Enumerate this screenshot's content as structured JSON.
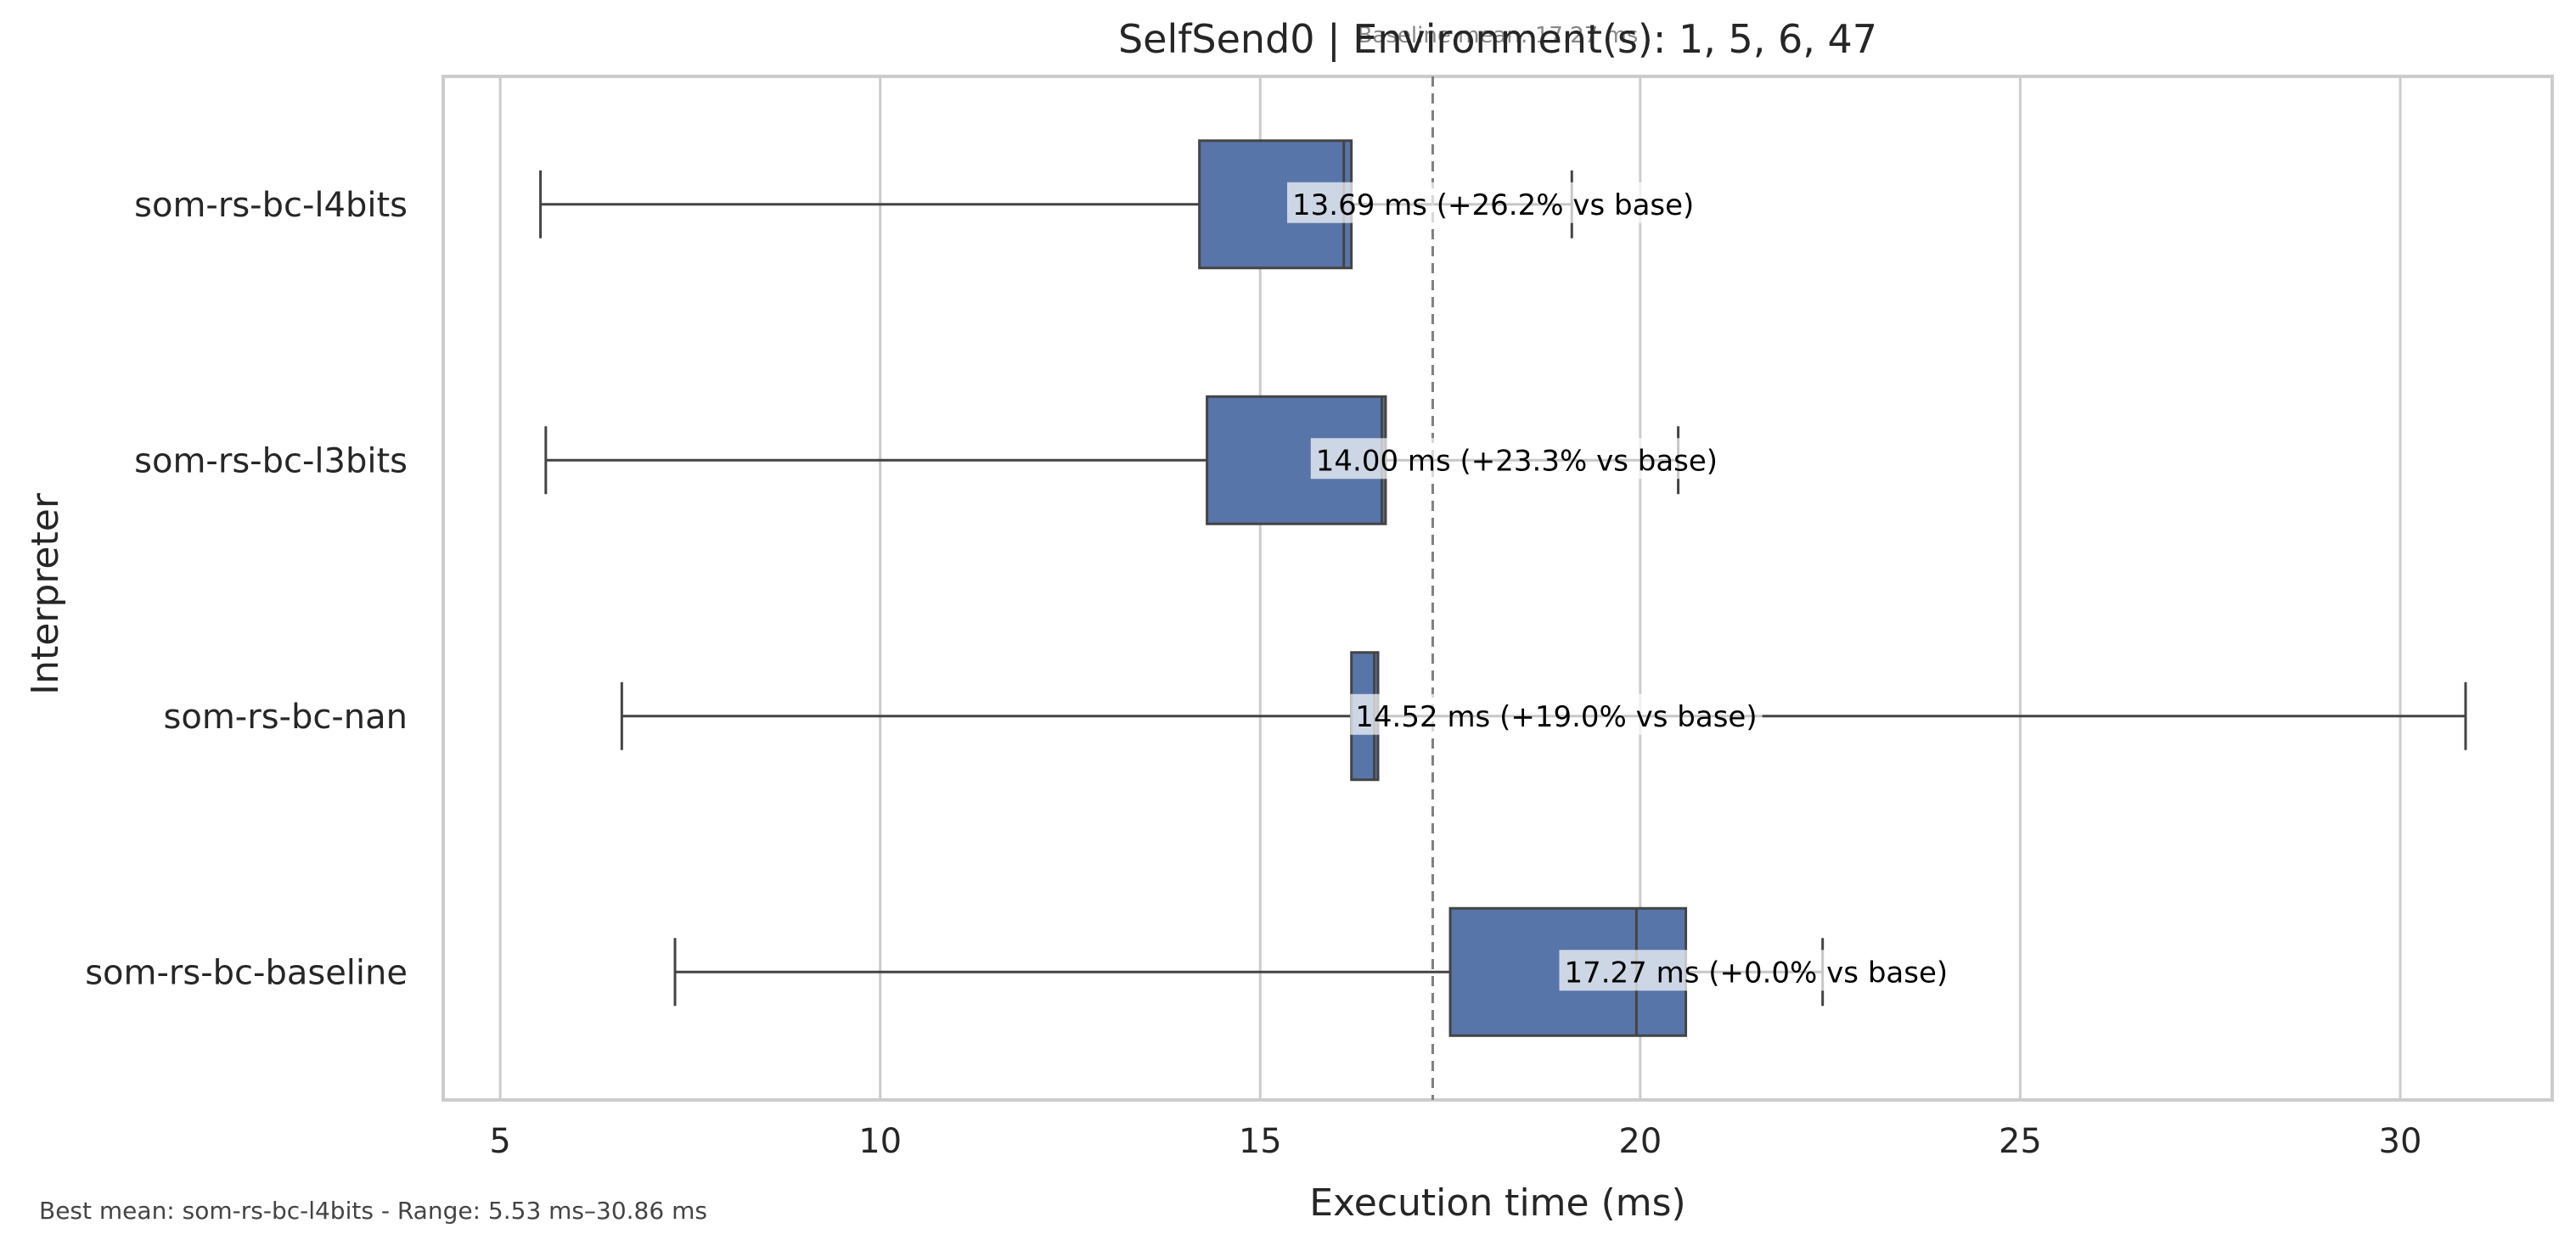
{
  "chart_data": {
    "type": "boxplot",
    "title": "SelfSend0 | Environment(s): 1, 5, 6, 47",
    "subtitle": "Baseline mean: 17.27 ms",
    "xlabel": "Execution time (ms)",
    "ylabel": "Interpreter",
    "xlim": [
      4.25,
      32.0
    ],
    "xticks": [
      "5",
      "10",
      "15",
      "20",
      "25",
      "30"
    ],
    "grid": "vertical",
    "baseline_mean": 17.27,
    "footer": "Best mean: som-rs-bc-l4bits - Range: 5.53 ms–30.86 ms",
    "box_color": "#5875a9",
    "categories": [
      "som-rs-bc-l4bits",
      "som-rs-bc-l3bits",
      "som-rs-bc-nan",
      "som-rs-bc-baseline"
    ],
    "series": [
      {
        "category": "som-rs-bc-l4bits",
        "whisker_low": 5.53,
        "q1": 14.2,
        "median": 16.1,
        "q3": 16.2,
        "whisker_high": 19.1,
        "mean": 13.69,
        "label": "13.69 ms  (+26.2% vs base)"
      },
      {
        "category": "som-rs-bc-l3bits",
        "whisker_low": 5.6,
        "q1": 14.3,
        "median": 16.6,
        "q3": 16.65,
        "whisker_high": 20.5,
        "mean": 14.0,
        "label": "14.00 ms  (+23.3% vs base)"
      },
      {
        "category": "som-rs-bc-nan",
        "whisker_low": 6.6,
        "q1": 16.2,
        "median": 16.5,
        "q3": 16.55,
        "whisker_high": 30.86,
        "mean": 14.52,
        "label": "14.52 ms  (+19.0% vs base)"
      },
      {
        "category": "som-rs-bc-baseline",
        "whisker_low": 7.3,
        "q1": 17.5,
        "median": 19.95,
        "q3": 20.6,
        "whisker_high": 22.4,
        "mean": 17.27,
        "label": "17.27 ms  (+0.0% vs base)"
      }
    ]
  }
}
